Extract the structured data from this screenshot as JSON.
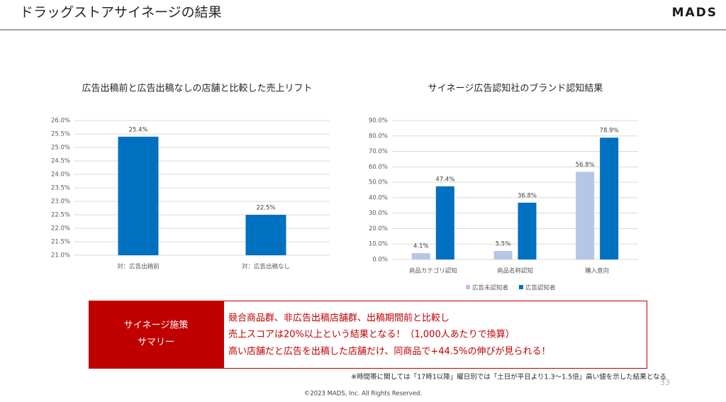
{
  "header": {
    "title": "ドラッグストアサイネージの結果",
    "logo": "MADS"
  },
  "chart_data": [
    {
      "type": "bar",
      "title": "広告出稿前と広告出稿なしの店舗と比較した売上リフト",
      "categories": [
        "対：広告出稿前",
        "対：広告出稿なし"
      ],
      "values": [
        25.4,
        22.5
      ],
      "value_labels": [
        "25.4%",
        "22.5%"
      ],
      "color": "#0070c0",
      "ylim": [
        21,
        26
      ],
      "yticks": [
        {
          "value": 21,
          "label": "21.0%"
        },
        {
          "value": 21.5,
          "label": "21.5%"
        },
        {
          "value": 22,
          "label": "22.0%"
        },
        {
          "value": 22.5,
          "label": "22.5%"
        },
        {
          "value": 23,
          "label": "23.0%"
        },
        {
          "value": 23.5,
          "label": "23.5%"
        },
        {
          "value": 24,
          "label": "24.0%"
        },
        {
          "value": 24.5,
          "label": "24.5%"
        },
        {
          "value": 25,
          "label": "25.0%"
        },
        {
          "value": 25.5,
          "label": "25.5%"
        },
        {
          "value": 26,
          "label": "26.0%"
        }
      ],
      "grid": true
    },
    {
      "type": "bar",
      "title": "サイネージ広告認知社のブランド認知結果",
      "categories": [
        "商品カテゴリ認知",
        "商品名称認知",
        "購入意向"
      ],
      "series": [
        {
          "name": "広告未認知者",
          "color": "#b4c7e7",
          "values": [
            4.1,
            5.5,
            56.8
          ],
          "value_labels": [
            "4.1%",
            "5.5%",
            "56.8%"
          ]
        },
        {
          "name": "広告認知者",
          "color": "#0070c0",
          "values": [
            47.4,
            36.8,
            78.9
          ],
          "value_labels": [
            "47.4%",
            "36.8%",
            "78.9%"
          ]
        }
      ],
      "ylim": [
        0,
        90
      ],
      "yticks": [
        {
          "value": 0,
          "label": "0.0%"
        },
        {
          "value": 10,
          "label": "10.0%"
        },
        {
          "value": 20,
          "label": "20.0%"
        },
        {
          "value": 30,
          "label": "30.0%"
        },
        {
          "value": 40,
          "label": "40.0%"
        },
        {
          "value": 50,
          "label": "50.0%"
        },
        {
          "value": 60,
          "label": "60.0%"
        },
        {
          "value": 70,
          "label": "70.0%"
        },
        {
          "value": 80,
          "label": "80.0%"
        },
        {
          "value": 90,
          "label": "90.0%"
        }
      ],
      "grid": true,
      "legend": "bottom"
    }
  ],
  "summary": {
    "label": [
      "サイネージ施策",
      "サマリー"
    ],
    "lines": [
      "競合商品群、非広告出稿店舗群、出稿期間前と比較し",
      "売上スコアは20%以上という結果となる！（1,000人あたりで換算）",
      "高い店舗だと広告を出稿した店舗だけ、同商品で+44.5%の伸びが見られる！"
    ]
  },
  "footnote": "※時間帯に関しては「17時1以降」曜日別では「土日が平日より1.3～1.5倍」高い値を示した結果となる",
  "page_number": "33",
  "copyright": "©2023 MADS, Inc. All Rights Reserved."
}
